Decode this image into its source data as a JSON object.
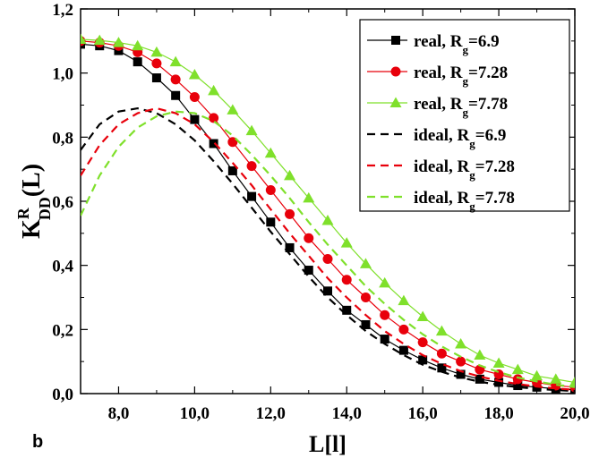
{
  "chart_data": {
    "type": "line",
    "panel_label": "b",
    "xlabel": "L[l]",
    "ylabel": {
      "main": "K",
      "sup": "R",
      "sub": "DD",
      "tail": "(L)"
    },
    "xlim": [
      7,
      20
    ],
    "ylim": [
      0,
      1.2
    ],
    "x_ticks": [
      8,
      10,
      12,
      14,
      16,
      18,
      20
    ],
    "x_tick_labels": [
      "8,0",
      "10,0",
      "12,0",
      "14,0",
      "16,0",
      "18,0",
      "20,0"
    ],
    "y_ticks": [
      0,
      0.2,
      0.4,
      0.6,
      0.8,
      1.0,
      1.2
    ],
    "y_tick_labels": [
      "0,0",
      "0,2",
      "0,4",
      "0,6",
      "0,8",
      "1,0",
      "1,2"
    ],
    "grid": false,
    "legend_position": "top-right",
    "series": [
      {
        "name": "real, R",
        "name_sub": "g",
        "name_suffix": "=6.9",
        "color": "#000000",
        "line": "solid",
        "marker": "square",
        "x": [
          7.0,
          7.5,
          8.0,
          8.5,
          9.0,
          9.5,
          10.0,
          10.5,
          11.0,
          11.5,
          12.0,
          12.5,
          13.0,
          13.5,
          14.0,
          14.5,
          15.0,
          15.5,
          16.0,
          16.5,
          17.0,
          17.5,
          18.0,
          18.5,
          19.0,
          19.5,
          20.0
        ],
        "y": [
          1.09,
          1.085,
          1.07,
          1.035,
          0.985,
          0.93,
          0.855,
          0.78,
          0.695,
          0.615,
          0.535,
          0.455,
          0.385,
          0.32,
          0.26,
          0.215,
          0.17,
          0.135,
          0.105,
          0.08,
          0.06,
          0.045,
          0.035,
          0.025,
          0.02,
          0.015,
          0.012
        ]
      },
      {
        "name": "real, R",
        "name_sub": "g",
        "name_suffix": "=7.28",
        "color": "#e8000b",
        "line": "solid",
        "marker": "circle",
        "x": [
          7.0,
          7.5,
          8.0,
          8.5,
          9.0,
          9.5,
          10.0,
          10.5,
          11.0,
          11.5,
          12.0,
          12.5,
          13.0,
          13.5,
          14.0,
          14.5,
          15.0,
          15.5,
          16.0,
          16.5,
          17.0,
          17.5,
          18.0,
          18.5,
          19.0,
          19.5,
          20.0
        ],
        "y": [
          1.1,
          1.095,
          1.085,
          1.065,
          1.03,
          0.98,
          0.925,
          0.86,
          0.785,
          0.71,
          0.635,
          0.56,
          0.485,
          0.42,
          0.355,
          0.3,
          0.245,
          0.2,
          0.16,
          0.125,
          0.1,
          0.075,
          0.06,
          0.045,
          0.035,
          0.025,
          0.02
        ]
      },
      {
        "name": "real, R",
        "name_sub": "g",
        "name_suffix": "=7.78",
        "color": "#7fe02b",
        "line": "solid",
        "marker": "triangle",
        "x": [
          7.0,
          7.5,
          8.0,
          8.5,
          9.0,
          9.5,
          10.0,
          10.5,
          11.0,
          11.5,
          12.0,
          12.5,
          13.0,
          13.5,
          14.0,
          14.5,
          15.0,
          15.5,
          16.0,
          16.5,
          17.0,
          17.5,
          18.0,
          18.5,
          19.0,
          19.5,
          20.0
        ],
        "y": [
          1.105,
          1.102,
          1.095,
          1.085,
          1.065,
          1.035,
          0.995,
          0.945,
          0.885,
          0.82,
          0.75,
          0.68,
          0.61,
          0.54,
          0.47,
          0.405,
          0.345,
          0.29,
          0.24,
          0.195,
          0.155,
          0.12,
          0.095,
          0.075,
          0.055,
          0.045,
          0.035
        ]
      },
      {
        "name": "ideal, R",
        "name_sub": "g",
        "name_suffix": "=6.9",
        "color": "#000000",
        "line": "dashed",
        "marker": "none",
        "x": [
          7.0,
          7.5,
          8.0,
          8.5,
          9.0,
          9.5,
          10.0,
          10.5,
          11.0,
          11.5,
          12.0,
          12.5,
          13.0,
          13.5,
          14.0,
          14.5,
          15.0,
          15.5,
          16.0,
          16.5,
          17.0,
          17.5,
          18.0,
          18.5,
          19.0,
          19.5,
          20.0
        ],
        "y": [
          0.76,
          0.84,
          0.88,
          0.89,
          0.875,
          0.84,
          0.79,
          0.725,
          0.655,
          0.58,
          0.505,
          0.435,
          0.365,
          0.3,
          0.245,
          0.195,
          0.155,
          0.12,
          0.09,
          0.068,
          0.05,
          0.037,
          0.027,
          0.02,
          0.015,
          0.011,
          0.008
        ]
      },
      {
        "name": "ideal, R",
        "name_sub": "g",
        "name_suffix": "=7.28",
        "color": "#e8000b",
        "line": "dashed",
        "marker": "none",
        "x": [
          7.0,
          7.5,
          8.0,
          8.5,
          9.0,
          9.5,
          10.0,
          10.5,
          11.0,
          11.5,
          12.0,
          12.5,
          13.0,
          13.5,
          14.0,
          14.5,
          15.0,
          15.5,
          16.0,
          16.5,
          17.0,
          17.5,
          18.0,
          18.5,
          19.0,
          19.5,
          20.0
        ],
        "y": [
          0.68,
          0.775,
          0.84,
          0.875,
          0.89,
          0.875,
          0.84,
          0.785,
          0.72,
          0.65,
          0.575,
          0.5,
          0.43,
          0.36,
          0.3,
          0.245,
          0.195,
          0.155,
          0.12,
          0.093,
          0.07,
          0.053,
          0.04,
          0.03,
          0.022,
          0.016,
          0.012
        ]
      },
      {
        "name": "ideal, R",
        "name_sub": "g",
        "name_suffix": "=7.78",
        "color": "#7fe02b",
        "line": "dashed",
        "marker": "none",
        "x": [
          7.0,
          7.5,
          8.0,
          8.5,
          9.0,
          9.5,
          10.0,
          10.5,
          11.0,
          11.5,
          12.0,
          12.5,
          13.0,
          13.5,
          14.0,
          14.5,
          15.0,
          15.5,
          16.0,
          16.5,
          17.0,
          17.5,
          18.0,
          18.5,
          19.0,
          19.5,
          20.0
        ],
        "y": [
          0.555,
          0.68,
          0.77,
          0.83,
          0.865,
          0.88,
          0.875,
          0.85,
          0.805,
          0.745,
          0.68,
          0.61,
          0.535,
          0.465,
          0.4,
          0.335,
          0.28,
          0.23,
          0.185,
          0.147,
          0.115,
          0.088,
          0.067,
          0.05,
          0.038,
          0.028,
          0.02
        ]
      }
    ]
  }
}
